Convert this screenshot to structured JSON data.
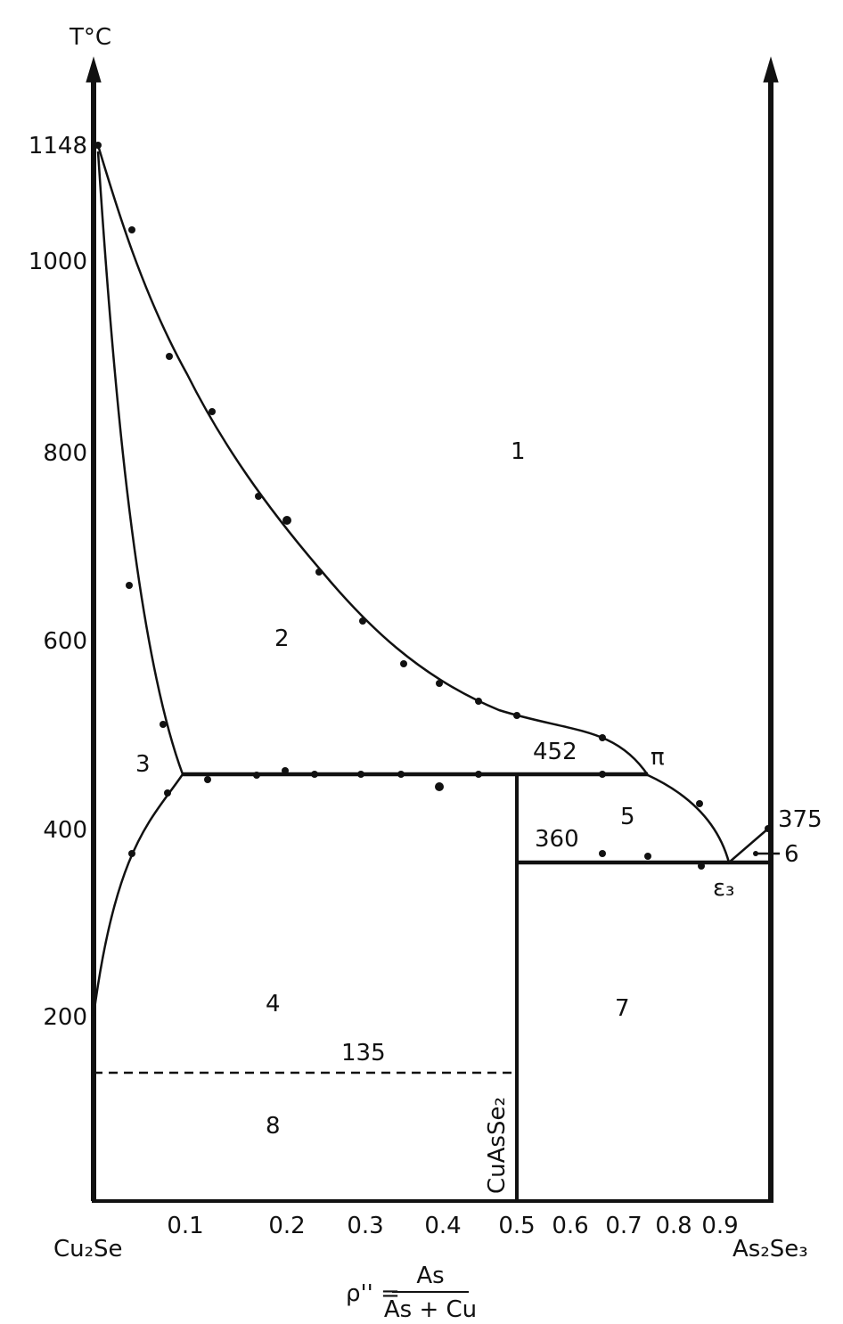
{
  "axis": {
    "y_title": "T°C",
    "y_ticks": [
      "1148",
      "1000",
      "800",
      "600",
      "400",
      "200"
    ],
    "x_ticks": [
      "0.1",
      "0.2",
      "0.3",
      "0.4",
      "0.5",
      "0.6",
      "0.7",
      "0.8",
      "0.9"
    ],
    "x_left": "Cu₂Se",
    "x_right": "As₂Se₃",
    "x_title": {
      "lhs": "ρ'' =",
      "numerator": "As",
      "denominator": "As + Cu"
    }
  },
  "isotherms": [
    "452",
    "360",
    "375",
    "135"
  ],
  "regions": [
    "1",
    "2",
    "3",
    "4",
    "5",
    "6",
    "7",
    "8"
  ],
  "labels": {
    "compound": "CuAsSe₂",
    "pi": "π",
    "eutectic": "ε₃"
  }
}
